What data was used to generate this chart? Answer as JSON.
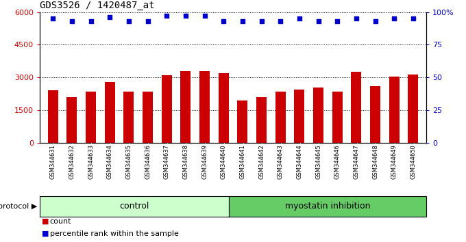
{
  "title": "GDS3526 / 1420487_at",
  "samples": [
    "GSM344631",
    "GSM344632",
    "GSM344633",
    "GSM344634",
    "GSM344635",
    "GSM344636",
    "GSM344637",
    "GSM344638",
    "GSM344639",
    "GSM344640",
    "GSM344641",
    "GSM344642",
    "GSM344643",
    "GSM344644",
    "GSM344645",
    "GSM344646",
    "GSM344647",
    "GSM344648",
    "GSM344649",
    "GSM344650"
  ],
  "bar_values": [
    2400,
    2100,
    2350,
    2800,
    2350,
    2350,
    3100,
    3300,
    3300,
    3200,
    1950,
    2100,
    2350,
    2450,
    2550,
    2350,
    3250,
    2600,
    3050,
    3150
  ],
  "percentile_values": [
    95,
    93,
    93,
    96,
    93,
    93,
    97,
    97,
    97,
    93,
    93,
    93,
    93,
    95,
    93,
    93,
    95,
    93,
    95,
    95
  ],
  "bar_color": "#cc0000",
  "dot_color": "#0000cc",
  "ylim_left": [
    0,
    6000
  ],
  "ylim_right": [
    0,
    100
  ],
  "yticks_left": [
    0,
    1500,
    3000,
    4500,
    6000
  ],
  "yticks_right": [
    0,
    25,
    50,
    75,
    100
  ],
  "ytick_right_labels": [
    "0",
    "25",
    "50",
    "75",
    "100%"
  ],
  "control_count": 10,
  "myostatin_count": 10,
  "control_label": "control",
  "myostatin_label": "myostatin inhibition",
  "protocol_label": "protocol",
  "legend_count": "count",
  "legend_percentile": "percentile rank within the sample",
  "control_color": "#ccffcc",
  "myostatin_color": "#66cc66",
  "xtick_bg_color": "#d8d8d8",
  "border_color": "#333333"
}
